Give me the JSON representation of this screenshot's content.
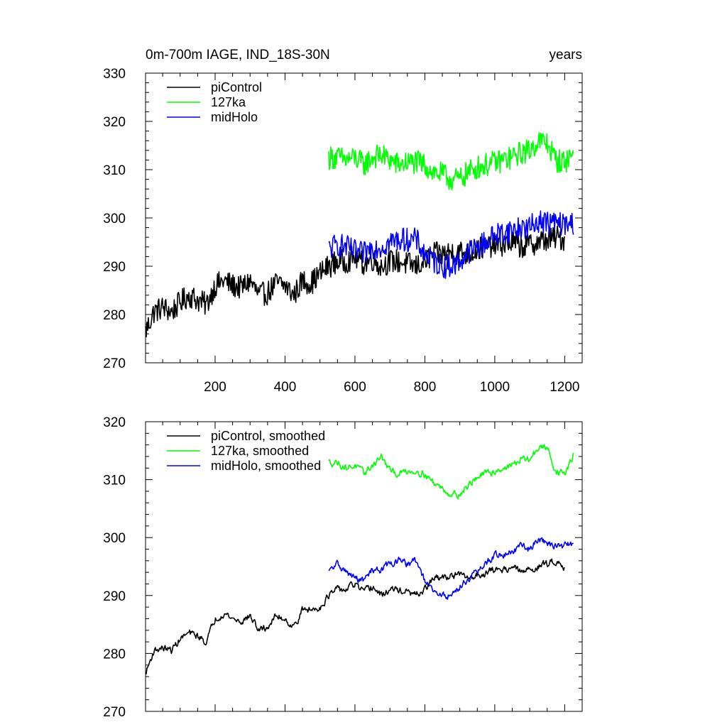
{
  "chart_data": [
    {
      "type": "line",
      "title": "0m-700m IAGE, IND_18S-30N",
      "units": "years",
      "xlim": [
        1,
        1250
      ],
      "ylim": [
        270,
        330
      ],
      "xticks": [
        200,
        400,
        600,
        800,
        1000,
        1200
      ],
      "xtick_labels": [
        "200",
        "400",
        "600",
        "800",
        "1000",
        "1200"
      ],
      "yticks": [
        270,
        280,
        290,
        300,
        310,
        320,
        330
      ],
      "ytick_labels": [
        "270",
        "280",
        "290",
        "300",
        "310",
        "320",
        "330"
      ],
      "grid": false,
      "legend": "top-left",
      "series": [
        {
          "name": "piControl",
          "color": "#000000",
          "x": [
            1,
            25,
            50,
            75,
            100,
            125,
            150,
            175,
            200,
            225,
            250,
            275,
            300,
            325,
            350,
            375,
            400,
            425,
            450,
            475,
            500,
            525,
            550,
            575,
            600,
            625,
            650,
            675,
            700,
            725,
            750,
            775,
            800,
            825,
            850,
            875,
            900,
            925,
            950,
            975,
            1000,
            1025,
            1050,
            1075,
            1100,
            1125,
            1150,
            1175,
            1200
          ],
          "values": [
            276.5,
            280.5,
            281.5,
            280.5,
            282.5,
            284,
            283,
            282,
            286,
            287,
            286,
            285.5,
            287,
            284,
            284.5,
            286.5,
            286,
            284,
            287,
            286.5,
            288.5,
            290,
            291,
            291,
            292,
            290.5,
            291.5,
            290,
            291,
            291,
            290.5,
            290,
            291,
            292.5,
            292.5,
            293,
            293,
            292.5,
            293.5,
            294,
            294.5,
            294.5,
            295,
            294,
            294.5,
            295,
            295.5,
            296,
            295.5
          ]
        },
        {
          "name": "127ka",
          "color": "#00ff00",
          "x": [
            525,
            550,
            575,
            600,
            625,
            650,
            675,
            700,
            725,
            750,
            775,
            800,
            825,
            850,
            875,
            900,
            925,
            950,
            975,
            1000,
            1025,
            1050,
            1075,
            1100,
            1125,
            1150,
            1175,
            1200,
            1225
          ],
          "values": [
            312.5,
            312.5,
            312,
            312.5,
            311,
            312.5,
            313,
            312,
            311,
            311.5,
            311.5,
            311,
            309.5,
            309,
            308,
            308,
            309.5,
            310.5,
            311,
            311.5,
            312,
            312.5,
            313.5,
            314,
            316,
            315.5,
            312,
            311.5,
            313.5
          ]
        },
        {
          "name": "midHolo",
          "color": "#0000ff",
          "x": [
            525,
            550,
            575,
            600,
            625,
            650,
            675,
            700,
            725,
            750,
            775,
            800,
            825,
            850,
            875,
            900,
            925,
            950,
            975,
            1000,
            1025,
            1050,
            1075,
            1100,
            1125,
            1150,
            1175,
            1200,
            1225
          ],
          "values": [
            293.5,
            294.5,
            294,
            293,
            292.5,
            294,
            294,
            295,
            295.5,
            295.5,
            295.5,
            292.5,
            291,
            290,
            290,
            291,
            293,
            294,
            295,
            296.5,
            297,
            297.5,
            298,
            298,
            299.5,
            299,
            299,
            298.5,
            299
          ]
        }
      ]
    },
    {
      "type": "line",
      "title": "",
      "xlim": [
        1,
        1250
      ],
      "ylim": [
        270,
        320
      ],
      "xticks": [
        200,
        400,
        600,
        800,
        1000,
        1200
      ],
      "yticks": [
        270,
        280,
        290,
        300,
        310,
        320
      ],
      "ytick_labels": [
        "270",
        "280",
        "290",
        "300",
        "310",
        "320"
      ],
      "grid": false,
      "legend": "top-left",
      "series": [
        {
          "name": "piControl, smoothed",
          "color": "#000000",
          "x": [
            1,
            25,
            50,
            75,
            100,
            125,
            150,
            175,
            200,
            225,
            250,
            275,
            300,
            325,
            350,
            375,
            400,
            425,
            450,
            475,
            500,
            525,
            550,
            575,
            600,
            625,
            650,
            675,
            700,
            725,
            750,
            775,
            800,
            825,
            850,
            875,
            900,
            925,
            950,
            975,
            1000,
            1025,
            1050,
            1075,
            1100,
            1125,
            1150,
            1175,
            1200
          ],
          "values": [
            276.5,
            280.5,
            281,
            280.5,
            282.5,
            283.5,
            283,
            282,
            286,
            287,
            286,
            285.5,
            286.5,
            284,
            284.5,
            286.5,
            286,
            284.5,
            287.5,
            287.5,
            288,
            290,
            291,
            291,
            292,
            290.5,
            291.5,
            290,
            291,
            291,
            290.5,
            290,
            291,
            293,
            293,
            293.5,
            293.5,
            293,
            293.5,
            294,
            294.5,
            294.5,
            295,
            294,
            294.5,
            295,
            295.5,
            296,
            295
          ]
        },
        {
          "name": "127ka, smoothed",
          "color": "#00ff00",
          "x": [
            525,
            550,
            575,
            600,
            625,
            650,
            675,
            700,
            725,
            750,
            775,
            800,
            825,
            850,
            875,
            900,
            925,
            950,
            975,
            1000,
            1025,
            1050,
            1075,
            1100,
            1125,
            1150,
            1175,
            1200,
            1225
          ],
          "values": [
            313,
            313,
            312,
            312.5,
            311,
            312.5,
            314,
            311.5,
            311,
            311.5,
            311.5,
            311,
            309.5,
            308.5,
            307.5,
            307.5,
            309,
            310.5,
            311,
            311.5,
            312,
            312.5,
            313.5,
            313.5,
            315.5,
            315.5,
            311.5,
            311,
            314
          ]
        },
        {
          "name": "midHolo, smoothed",
          "color": "#0000ff",
          "x": [
            525,
            550,
            575,
            600,
            625,
            650,
            675,
            700,
            725,
            750,
            775,
            800,
            825,
            850,
            875,
            900,
            925,
            950,
            975,
            1000,
            1025,
            1050,
            1075,
            1100,
            1125,
            1150,
            1175,
            1200,
            1225
          ],
          "values": [
            294,
            295.5,
            294,
            293,
            292.5,
            294.5,
            294.5,
            295.5,
            296,
            295.5,
            296,
            292.5,
            290.5,
            290,
            290,
            291.5,
            293,
            294,
            295.5,
            297,
            297,
            297.5,
            298.5,
            298,
            300,
            299,
            298.5,
            298.5,
            299
          ]
        }
      ]
    }
  ]
}
